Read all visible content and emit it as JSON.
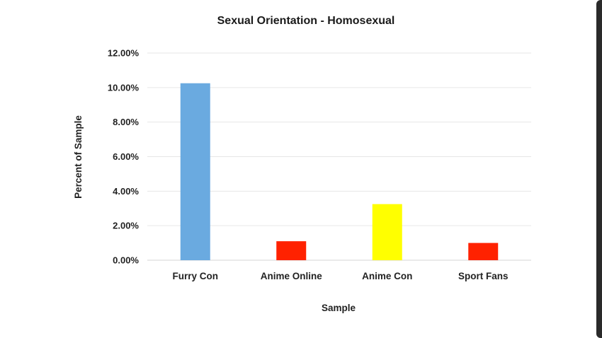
{
  "chart_data": {
    "type": "bar",
    "title": "Sexual Orientation - Homosexual",
    "xlabel": "Sample",
    "ylabel": "Percent of Sample",
    "categories": [
      "Furry Con",
      "Anime Online",
      "Anime Con",
      "Sport Fans"
    ],
    "values": [
      10.25,
      1.1,
      3.25,
      1.0
    ],
    "colors": [
      "#6aaae0",
      "#ff2200",
      "#ffff00",
      "#ff2200"
    ],
    "ylim": [
      0,
      12
    ],
    "yticks": [
      {
        "value": 0,
        "label": "0.00%"
      },
      {
        "value": 2,
        "label": "2.00%"
      },
      {
        "value": 4,
        "label": "4.00%"
      },
      {
        "value": 6,
        "label": "6.00%"
      },
      {
        "value": 8,
        "label": "8.00%"
      },
      {
        "value": 10,
        "label": "10.00%"
      },
      {
        "value": 12,
        "label": "12.00%"
      }
    ],
    "grid": true,
    "legend": "none"
  }
}
